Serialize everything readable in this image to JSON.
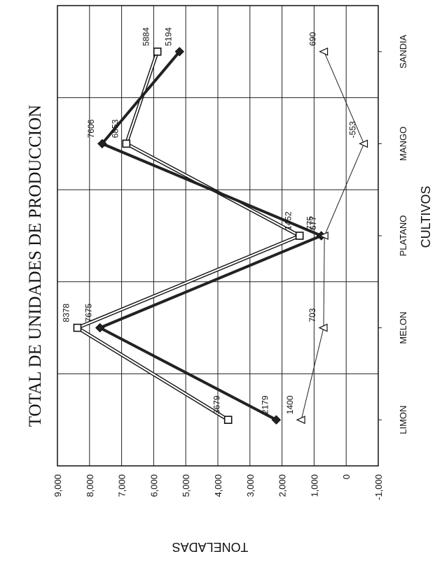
{
  "chart_data": {
    "type": "line",
    "title": "TOTAL DE UNIDADES DE PRODUCCION",
    "xlabel": "CULTIVOS",
    "ylabel": "TONELADAS",
    "categories": [
      "LIMON",
      "MELON",
      "PLATANO",
      "MANGO",
      "SANDIA"
    ],
    "ylim": [
      -1000,
      9000
    ],
    "yticks": [
      "-1,000",
      "0",
      "1,000",
      "2,000",
      "3,000",
      "4,000",
      "5,000",
      "6,000",
      "7,000",
      "8,000",
      "9,000"
    ],
    "grid": true,
    "orientation": "rotated 90 degrees (page printed sideways)",
    "series": [
      {
        "marker": "square",
        "values": [
          3679,
          8378,
          1452,
          6853,
          5884
        ],
        "labels": [
          "3679",
          "8378",
          "1452",
          "6853",
          "5884"
        ],
        "style": "double"
      },
      {
        "marker": "diamond",
        "values": [
          2179,
          7675,
          775,
          7606,
          5194
        ],
        "labels": [
          "2179",
          "7675",
          "775",
          "7606",
          "5194"
        ],
        "style": "thick"
      },
      {
        "marker": "triangle",
        "values": [
          1400,
          703,
          677,
          -553,
          690
        ],
        "labels": [
          "1400",
          "703",
          "677",
          "-553",
          "690"
        ],
        "style": "thin"
      }
    ]
  }
}
